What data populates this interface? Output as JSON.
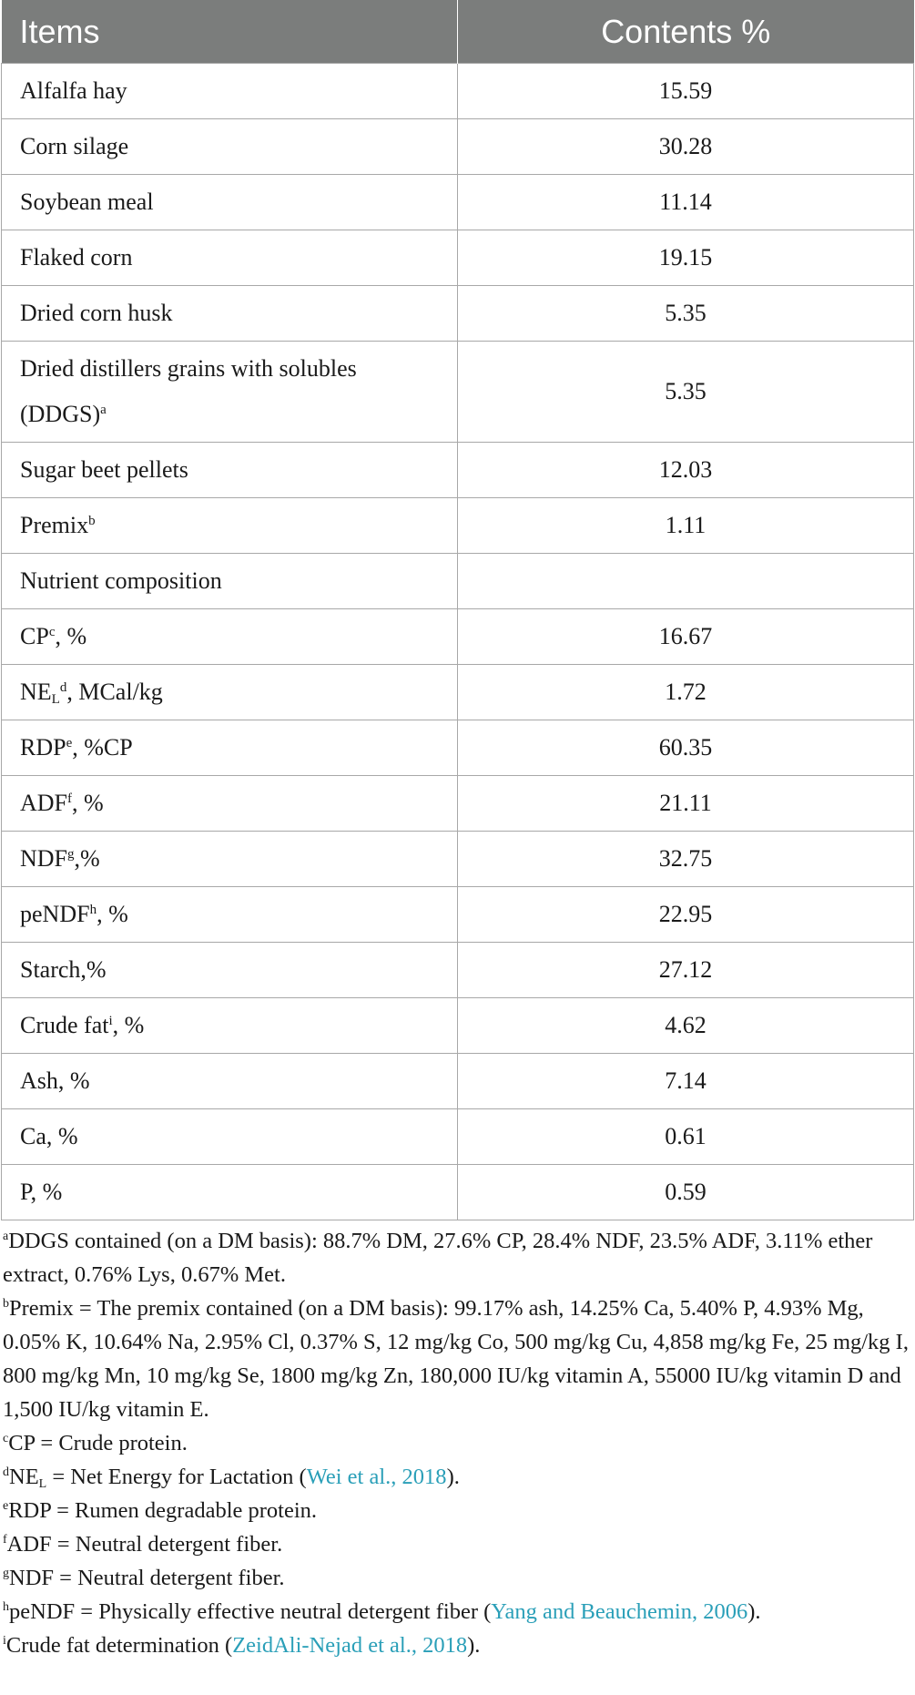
{
  "table": {
    "headers": [
      "Items",
      "Contents %"
    ],
    "rows": [
      {
        "label": "Alfalfa hay",
        "value": "15.59"
      },
      {
        "label": "Corn silage",
        "value": "30.28"
      },
      {
        "label": "Soybean meal",
        "value": "11.14"
      },
      {
        "label": "Flaked corn",
        "value": "19.15"
      },
      {
        "label": "Dried corn husk",
        "value": "5.35"
      },
      {
        "label_line1": "Dried distillers grains with solubles",
        "label_line2": "(DDGS)",
        "sup": "a",
        "value": "5.35"
      },
      {
        "label": "Sugar beet pellets",
        "value": "12.03"
      },
      {
        "label": "Premix",
        "sup": "b",
        "value": "1.11"
      },
      {
        "label": "Nutrient composition",
        "value": ""
      },
      {
        "label": "CP",
        "sup": "c",
        "suffix": ", %",
        "value": "16.67"
      },
      {
        "label": "NE",
        "sub": "L",
        "sup": "d",
        "suffix": ", MCal/kg",
        "value": "1.72"
      },
      {
        "label": "RDP",
        "sup": "e",
        "suffix": ", %CP",
        "value": "60.35"
      },
      {
        "label": "ADF",
        "sup": "f",
        "suffix": ", %",
        "value": "21.11"
      },
      {
        "label": "NDF",
        "sup": "g",
        "suffix": ",%",
        "value": "32.75"
      },
      {
        "label": "peNDF",
        "sup": "h",
        "suffix": ", %",
        "value": "22.95"
      },
      {
        "label": "Starch,%",
        "value": "27.12"
      },
      {
        "label": "Crude fat",
        "sup": "i",
        "suffix": ", %",
        "value": "4.62"
      },
      {
        "label": "Ash, %",
        "value": "7.14"
      },
      {
        "label": "Ca, %",
        "value": "0.61"
      },
      {
        "label": "P, %",
        "value": "0.59"
      }
    ]
  },
  "footnotes": {
    "a": {
      "mark": "a",
      "text": "DDGS contained (on a DM basis): 88.7% DM, 27.6% CP, 28.4% NDF, 23.5% ADF, 3.11% ether extract, 0.76% Lys, 0.67% Met."
    },
    "b": {
      "mark": "b",
      "text": "Premix = The premix contained (on a DM basis): 99.17% ash, 14.25% Ca, 5.40% P, 4.93% Mg, 0.05% K, 10.64% Na, 2.95% Cl, 0.37% S, 12 mg/kg Co, 500 mg/kg Cu, 4,858 mg/kg Fe, 25 mg/kg I, 800 mg/kg Mn, 10 mg/kg Se, 1800 mg/kg Zn, 180,000 IU/kg vitamin A, 55000 IU/kg vitamin D and 1,500 IU/kg vitamin E."
    },
    "c": {
      "mark": "c",
      "text": "CP = Crude protein."
    },
    "d": {
      "mark": "d",
      "pre": "NE",
      "sub": "L",
      "text": " = Net Energy for Lactation (",
      "cite": "Wei et al., 2018",
      "post": ")."
    },
    "e": {
      "mark": "e",
      "text": "RDP = Rumen degradable protein."
    },
    "f": {
      "mark": "f",
      "text": "ADF = Neutral detergent fiber."
    },
    "g": {
      "mark": "g",
      "text": "NDF = Neutral detergent fiber."
    },
    "h": {
      "mark": "h",
      "text": "peNDF = Physically effective neutral detergent fiber (",
      "cite": "Yang and Beauchemin, 2006",
      "post": ")."
    },
    "i": {
      "mark": "i",
      "text": "Crude fat determination (",
      "cite": "ZeidAli-Nejad et al., 2018",
      "post": ")."
    }
  },
  "colors": {
    "header_bg": "#7b7d7c",
    "border": "#a8a8a8",
    "citation_link": "#2a9fb8"
  }
}
